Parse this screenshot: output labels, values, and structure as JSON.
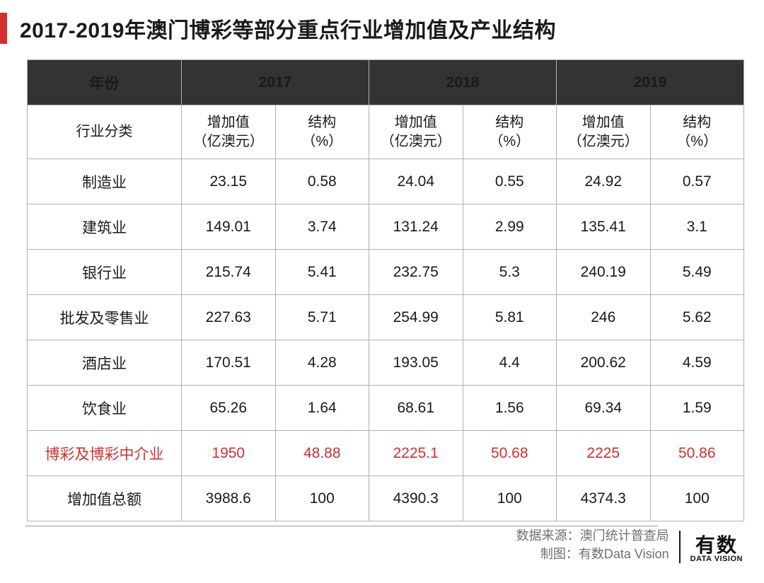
{
  "title": "2017-2019年澳门博彩等部分重点行业增加值及产业结构",
  "table": {
    "header_years": [
      "2017",
      "2018",
      "2019"
    ],
    "corner_label": "年份",
    "category_label": "行业分类",
    "sub_headers": {
      "value": "增加值\n（亿澳元）",
      "share": "结构\n（%）"
    },
    "highlight_row_index": 6,
    "header_bg": "#333333",
    "highlight_color": "#d32f2f",
    "border_color": "#b0b0b0",
    "rows": [
      {
        "label": "制造业",
        "v2017": "23.15",
        "s2017": "0.58",
        "v2018": "24.04",
        "s2018": "0.55",
        "v2019": "24.92",
        "s2019": "0.57"
      },
      {
        "label": "建筑业",
        "v2017": "149.01",
        "s2017": "3.74",
        "v2018": "131.24",
        "s2018": "2.99",
        "v2019": "135.41",
        "s2019": "3.1"
      },
      {
        "label": "银行业",
        "v2017": "215.74",
        "s2017": "5.41",
        "v2018": "232.75",
        "s2018": "5.3",
        "v2019": "240.19",
        "s2019": "5.49"
      },
      {
        "label": "批发及零售业",
        "v2017": "227.63",
        "s2017": "5.71",
        "v2018": "254.99",
        "s2018": "5.81",
        "v2019": "246",
        "s2019": "5.62"
      },
      {
        "label": "酒店业",
        "v2017": "170.51",
        "s2017": "4.28",
        "v2018": "193.05",
        "s2018": "4.4",
        "v2019": "200.62",
        "s2019": "4.59"
      },
      {
        "label": "饮食业",
        "v2017": "65.26",
        "s2017": "1.64",
        "v2018": "68.61",
        "s2018": "1.56",
        "v2019": "69.34",
        "s2019": "1.59"
      },
      {
        "label": "博彩及博彩中介业",
        "v2017": "1950",
        "s2017": "48.88",
        "v2018": "2225.1",
        "s2018": "50.68",
        "v2019": "2225",
        "s2019": "50.86"
      },
      {
        "label": "增加值总额",
        "v2017": "3988.6",
        "s2017": "100",
        "v2018": "4390.3",
        "s2018": "100",
        "v2019": "4374.3",
        "s2019": "100"
      }
    ]
  },
  "footer": {
    "source_label": "数据来源：",
    "source_value": "澳门统计普查局",
    "maker_label": "制图：",
    "maker_value": "有数Data Vision",
    "logo_cn": "有数",
    "logo_en": "DATA VISION"
  }
}
